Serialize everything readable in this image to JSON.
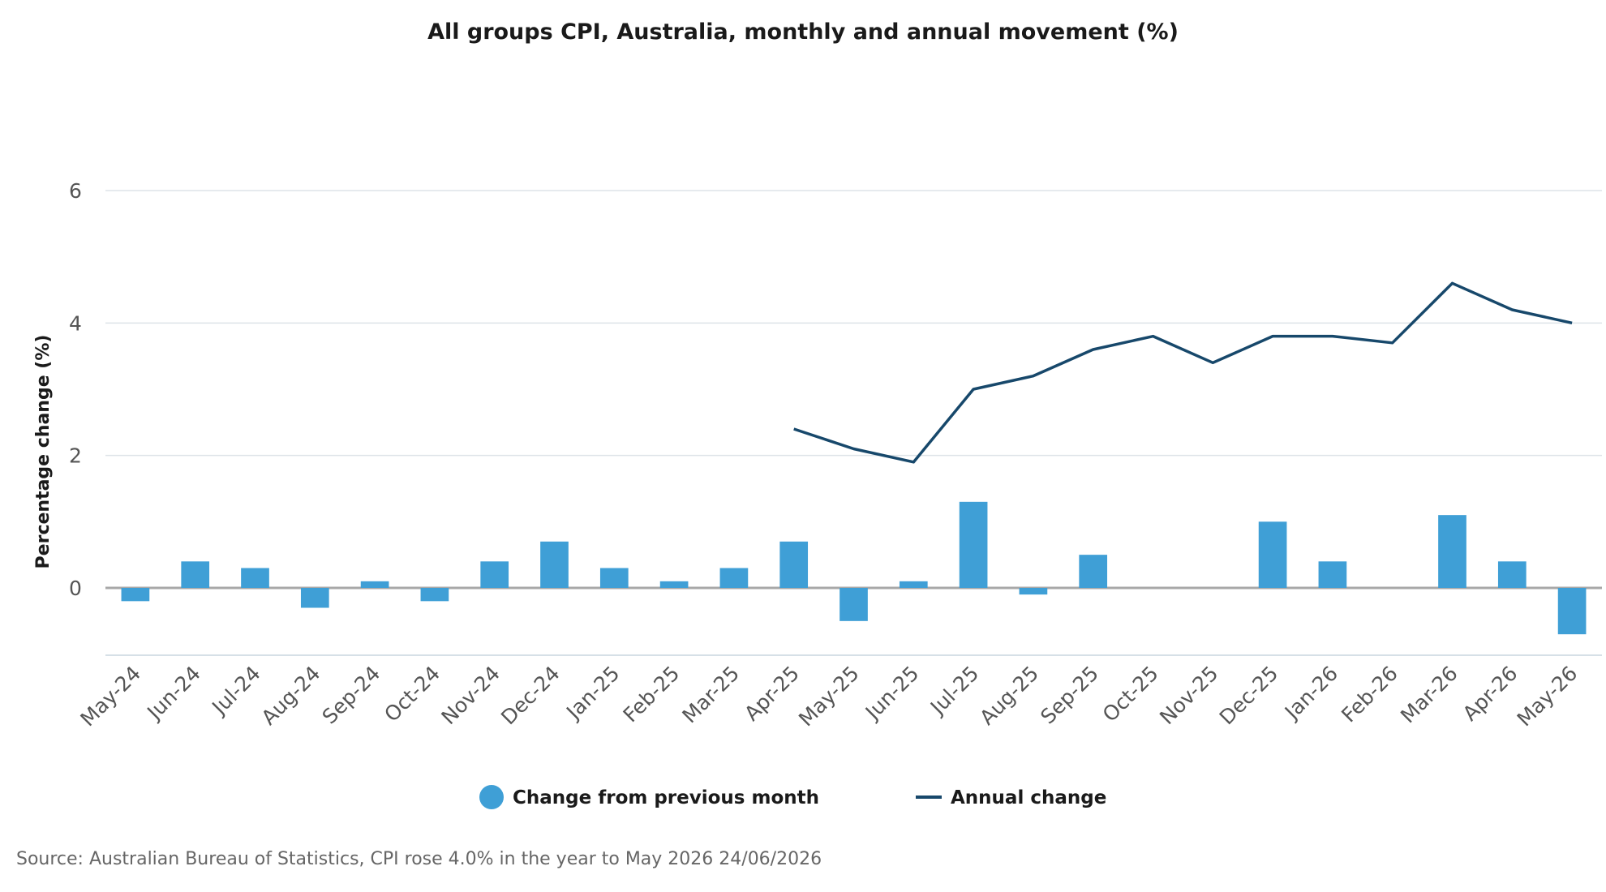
{
  "chart_data": {
    "type": "bar",
    "title": "All groups CPI, Australia, monthly and annual movement (%)",
    "ylabel": "Percentage change (%)",
    "xlabel": "",
    "ylim": [
      -1,
      6
    ],
    "yticks": [
      0,
      2,
      4,
      6
    ],
    "grid": true,
    "legend_position": "bottom",
    "categories": [
      "May-24",
      "Jun-24",
      "Jul-24",
      "Aug-24",
      "Sep-24",
      "Oct-24",
      "Nov-24",
      "Dec-24",
      "Jan-25",
      "Feb-25",
      "Mar-25",
      "Apr-25",
      "May-25",
      "Jun-25",
      "Jul-25",
      "Aug-25",
      "Sep-25",
      "Oct-25",
      "Nov-25",
      "Dec-25",
      "Jan-26",
      "Feb-26",
      "Mar-26",
      "Apr-26",
      "May-26"
    ],
    "series": [
      {
        "name": "Change from previous month",
        "type": "bar",
        "color": "#3f9fd6",
        "values": [
          -0.2,
          0.4,
          0.3,
          -0.3,
          0.1,
          -0.2,
          0.4,
          0.7,
          0.3,
          0.1,
          0.3,
          0.7,
          -0.5,
          0.1,
          1.3,
          -0.1,
          0.5,
          0.0,
          0.0,
          1.0,
          0.4,
          0.0,
          1.1,
          0.4,
          -0.7
        ]
      },
      {
        "name": "Annual change",
        "type": "line",
        "color": "#17486b",
        "values": [
          null,
          null,
          null,
          null,
          null,
          null,
          null,
          null,
          null,
          null,
          null,
          2.4,
          2.1,
          1.9,
          3.0,
          3.2,
          3.6,
          3.8,
          3.4,
          3.8,
          3.8,
          3.7,
          4.6,
          4.2,
          4.0
        ]
      }
    ],
    "source": "Source: Australian Bureau of Statistics, CPI rose 4.0% in the year to May 2026 24/06/2026"
  }
}
